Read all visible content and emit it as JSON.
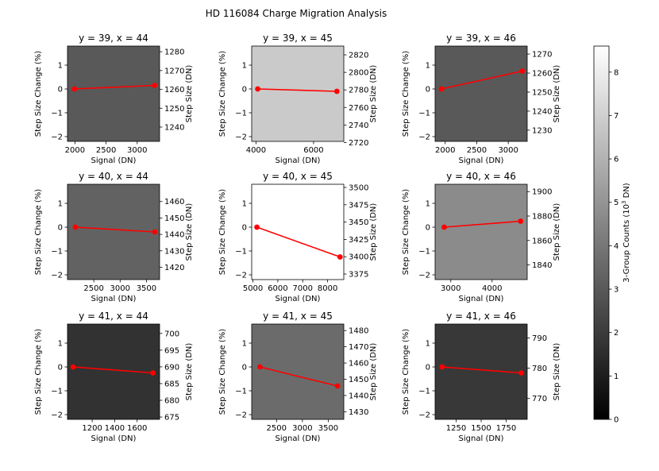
{
  "figure": {
    "title": "HD 116084 Charge Migration Analysis",
    "xlabel": "Signal (DN)",
    "ylabel_left": "Step Size Change (%)",
    "ylabel_right": "Step Size (DN)",
    "colorbar_label": "3-Group Counts (10^3 DN)",
    "colorbar_ticks": [
      0,
      1,
      2,
      3,
      4,
      5,
      6,
      7,
      8
    ],
    "colorbar_range": [
      0,
      8.6
    ],
    "line_color": "#ff0000"
  },
  "chart_data": [
    {
      "type": "line",
      "title": "y = 39, x = 44",
      "x": [
        1990,
        3280
      ],
      "y_pct": [
        0.0,
        0.15
      ],
      "xlim": [
        1880,
        3360
      ],
      "xticks": [
        2000,
        2500,
        3000
      ],
      "ylim": [
        -2.2,
        1.8
      ],
      "yticks": [
        -2,
        -1,
        0,
        1
      ],
      "ylim_right": [
        1232.4,
        1283.0
      ],
      "yticks_right": [
        1240,
        1250,
        1260,
        1270,
        1280
      ],
      "background_counts": 3.0
    },
    {
      "type": "line",
      "title": "y = 39, x = 45",
      "x": [
        4060,
        6810
      ],
      "y_pct": [
        0.0,
        -0.1
      ],
      "xlim": [
        3850,
        7050
      ],
      "xticks": [
        4000,
        6000
      ],
      "ylim": [
        -2.2,
        1.8
      ],
      "yticks": [
        -2,
        -1,
        0,
        1
      ],
      "ylim_right": [
        2721.3,
        2830.0
      ],
      "yticks_right": [
        2720,
        2740,
        2760,
        2780,
        2800,
        2820
      ],
      "background_counts": 6.8
    },
    {
      "type": "line",
      "title": "y = 39, x = 46",
      "x": [
        1940,
        3220
      ],
      "y_pct": [
        0.0,
        0.75
      ],
      "xlim": [
        1840,
        3300
      ],
      "xticks": [
        2000,
        2500,
        3000
      ],
      "ylim": [
        -2.2,
        1.8
      ],
      "yticks": [
        -2,
        -1,
        0,
        1
      ],
      "ylim_right": [
        1224.1,
        1274.2
      ],
      "yticks_right": [
        1230,
        1240,
        1250,
        1260,
        1270
      ],
      "background_counts": 3.0
    },
    {
      "type": "line",
      "title": "y = 40, x = 44",
      "x": [
        2150,
        3660
      ],
      "y_pct": [
        0.0,
        -0.2
      ],
      "xlim": [
        2000,
        3750
      ],
      "xticks": [
        2500,
        3000,
        3500
      ],
      "ylim": [
        -2.2,
        1.8
      ],
      "yticks": [
        -2,
        -1,
        0,
        1
      ],
      "ylim_right": [
        1412.5,
        1470.5
      ],
      "yticks_right": [
        1420,
        1430,
        1440,
        1450,
        1460
      ],
      "background_counts": 3.3
    },
    {
      "type": "line",
      "title": "y = 40, x = 45",
      "x": [
        5160,
        8500
      ],
      "y_pct": [
        0.0,
        -1.25
      ],
      "xlim": [
        4950,
        8650
      ],
      "xticks": [
        5000,
        6000,
        7000,
        8000
      ],
      "ylim": [
        -2.2,
        1.8
      ],
      "yticks": [
        -2,
        -1,
        0,
        1
      ],
      "ylim_right": [
        3367.0,
        3504.6
      ],
      "yticks_right": [
        3375,
        3400,
        3425,
        3450,
        3475,
        3500
      ],
      "background_counts": 8.6
    },
    {
      "type": "line",
      "title": "y = 40, x = 46",
      "x": [
        2840,
        4690
      ],
      "y_pct": [
        0.0,
        0.25
      ],
      "xlim": [
        2620,
        4850
      ],
      "xticks": [
        3000,
        4000
      ],
      "ylim": [
        -2.2,
        1.8
      ],
      "yticks": [
        -2,
        -1,
        0,
        1
      ],
      "ylim_right": [
        1828.0,
        1906.0
      ],
      "yticks_right": [
        1840,
        1860,
        1880,
        1900
      ],
      "background_counts": 4.7
    },
    {
      "type": "line",
      "title": "y = 41, x = 44",
      "x": [
        1030,
        1740
      ],
      "y_pct": [
        0.0,
        -0.25
      ],
      "xlim": [
        980,
        1800
      ],
      "xticks": [
        1200,
        1400,
        1600
      ],
      "ylim": [
        -2.2,
        1.8
      ],
      "yticks": [
        -2,
        -1,
        0,
        1
      ],
      "ylim_right": [
        674.3,
        702.8
      ],
      "yticks_right": [
        675,
        680,
        685,
        690,
        695,
        700
      ],
      "background_counts": 1.7
    },
    {
      "type": "line",
      "title": "y = 41, x = 45",
      "x": [
        2180,
        3680
      ],
      "y_pct": [
        0.0,
        -0.8
      ],
      "xlim": [
        2020,
        3800
      ],
      "xticks": [
        2500,
        3000,
        3500
      ],
      "ylim": [
        -2.2,
        1.8
      ],
      "yticks": [
        -2,
        -1,
        0,
        1
      ],
      "ylim_right": [
        1425.3,
        1484.0
      ],
      "yticks_right": [
        1430,
        1440,
        1450,
        1460,
        1470,
        1480
      ],
      "background_counts": 3.6
    },
    {
      "type": "line",
      "title": "y = 41, x = 46",
      "x": [
        1110,
        1900
      ],
      "y_pct": [
        0.0,
        -0.25
      ],
      "xlim": [
        1040,
        1960
      ],
      "xticks": [
        1250,
        1500,
        1750
      ],
      "ylim": [
        -2.2,
        1.8
      ],
      "yticks": [
        -2,
        -1,
        0,
        1
      ],
      "ylim_right": [
        763.1,
        794.6
      ],
      "yticks_right": [
        770,
        780,
        790
      ],
      "background_counts": 1.9
    }
  ]
}
